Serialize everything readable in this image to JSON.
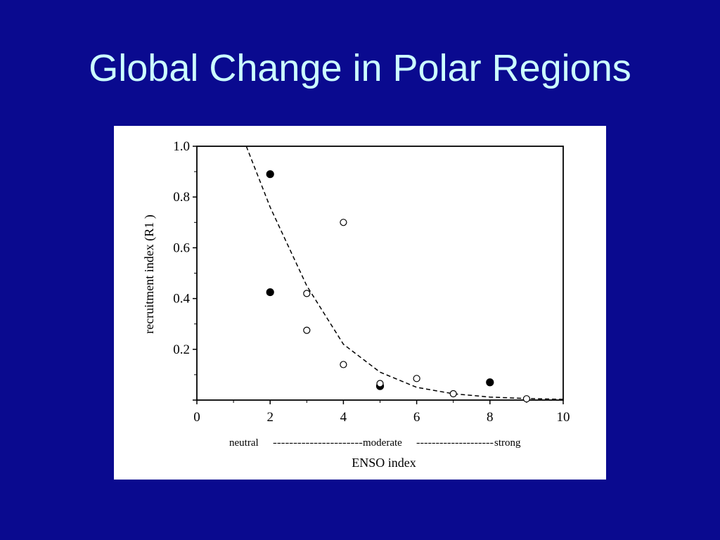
{
  "slide": {
    "title": "Global Change in Polar Regions"
  },
  "chart_data": {
    "type": "scatter",
    "title": "",
    "xlabel": "ENSO index",
    "ylabel": "recruitment index (R1 )",
    "xlim": [
      0,
      10
    ],
    "ylim": [
      0,
      1.0
    ],
    "x_ticks": [
      "0",
      "2",
      "4",
      "6",
      "8",
      "10"
    ],
    "y_ticks": [
      "0.2",
      "0.4",
      "0.6",
      "0.8",
      "1.0"
    ],
    "scale_labels": {
      "neutral": "neutral",
      "dash1": "----------------------",
      "moderate": "moderate",
      "dash2": "--------------------",
      "strong": "strong"
    },
    "series": [
      {
        "marker": "filled-circle",
        "points": [
          [
            2,
            0.89
          ],
          [
            2,
            0.425
          ],
          [
            5,
            0.055
          ],
          [
            8,
            0.07
          ]
        ]
      },
      {
        "marker": "open-circle",
        "points": [
          [
            3,
            0.42
          ],
          [
            3,
            0.275
          ],
          [
            4,
            0.7
          ],
          [
            4,
            0.14
          ],
          [
            5,
            0.065
          ],
          [
            6,
            0.085
          ],
          [
            7,
            0.025
          ],
          [
            9,
            0.005
          ]
        ]
      }
    ],
    "fit_curve": {
      "style": "dashed",
      "form": "exponential decay",
      "points": [
        [
          1.35,
          1.0
        ],
        [
          2,
          0.76
        ],
        [
          3,
          0.45
        ],
        [
          4,
          0.22
        ],
        [
          5,
          0.11
        ],
        [
          6,
          0.05
        ],
        [
          7,
          0.025
        ],
        [
          8,
          0.012
        ],
        [
          9,
          0.006
        ],
        [
          10,
          0.003
        ]
      ]
    },
    "grid": false,
    "legend": "none"
  }
}
